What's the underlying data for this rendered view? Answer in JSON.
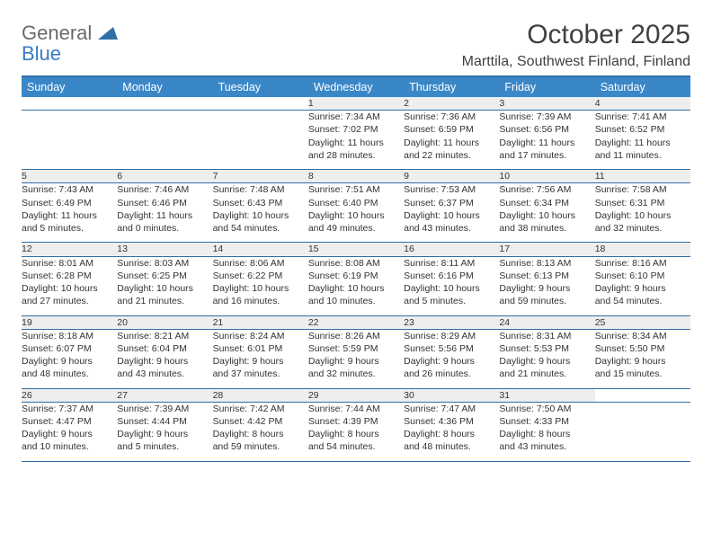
{
  "brand": {
    "name1": "General",
    "name2": "Blue"
  },
  "title": "October 2025",
  "location": "Marttila, Southwest Finland, Finland",
  "header_bg": "#3a87c8",
  "border_color": "#2f6fa8",
  "day_headers": [
    "Sunday",
    "Monday",
    "Tuesday",
    "Wednesday",
    "Thursday",
    "Friday",
    "Saturday"
  ],
  "weeks": [
    {
      "days": [
        {
          "num": "",
          "lines": []
        },
        {
          "num": "",
          "lines": []
        },
        {
          "num": "",
          "lines": []
        },
        {
          "num": "1",
          "lines": [
            "Sunrise: 7:34 AM",
            "Sunset: 7:02 PM",
            "Daylight: 11 hours",
            "and 28 minutes."
          ]
        },
        {
          "num": "2",
          "lines": [
            "Sunrise: 7:36 AM",
            "Sunset: 6:59 PM",
            "Daylight: 11 hours",
            "and 22 minutes."
          ]
        },
        {
          "num": "3",
          "lines": [
            "Sunrise: 7:39 AM",
            "Sunset: 6:56 PM",
            "Daylight: 11 hours",
            "and 17 minutes."
          ]
        },
        {
          "num": "4",
          "lines": [
            "Sunrise: 7:41 AM",
            "Sunset: 6:52 PM",
            "Daylight: 11 hours",
            "and 11 minutes."
          ]
        }
      ]
    },
    {
      "days": [
        {
          "num": "5",
          "lines": [
            "Sunrise: 7:43 AM",
            "Sunset: 6:49 PM",
            "Daylight: 11 hours",
            "and 5 minutes."
          ]
        },
        {
          "num": "6",
          "lines": [
            "Sunrise: 7:46 AM",
            "Sunset: 6:46 PM",
            "Daylight: 11 hours",
            "and 0 minutes."
          ]
        },
        {
          "num": "7",
          "lines": [
            "Sunrise: 7:48 AM",
            "Sunset: 6:43 PM",
            "Daylight: 10 hours",
            "and 54 minutes."
          ]
        },
        {
          "num": "8",
          "lines": [
            "Sunrise: 7:51 AM",
            "Sunset: 6:40 PM",
            "Daylight: 10 hours",
            "and 49 minutes."
          ]
        },
        {
          "num": "9",
          "lines": [
            "Sunrise: 7:53 AM",
            "Sunset: 6:37 PM",
            "Daylight: 10 hours",
            "and 43 minutes."
          ]
        },
        {
          "num": "10",
          "lines": [
            "Sunrise: 7:56 AM",
            "Sunset: 6:34 PM",
            "Daylight: 10 hours",
            "and 38 minutes."
          ]
        },
        {
          "num": "11",
          "lines": [
            "Sunrise: 7:58 AM",
            "Sunset: 6:31 PM",
            "Daylight: 10 hours",
            "and 32 minutes."
          ]
        }
      ]
    },
    {
      "days": [
        {
          "num": "12",
          "lines": [
            "Sunrise: 8:01 AM",
            "Sunset: 6:28 PM",
            "Daylight: 10 hours",
            "and 27 minutes."
          ]
        },
        {
          "num": "13",
          "lines": [
            "Sunrise: 8:03 AM",
            "Sunset: 6:25 PM",
            "Daylight: 10 hours",
            "and 21 minutes."
          ]
        },
        {
          "num": "14",
          "lines": [
            "Sunrise: 8:06 AM",
            "Sunset: 6:22 PM",
            "Daylight: 10 hours",
            "and 16 minutes."
          ]
        },
        {
          "num": "15",
          "lines": [
            "Sunrise: 8:08 AM",
            "Sunset: 6:19 PM",
            "Daylight: 10 hours",
            "and 10 minutes."
          ]
        },
        {
          "num": "16",
          "lines": [
            "Sunrise: 8:11 AM",
            "Sunset: 6:16 PM",
            "Daylight: 10 hours",
            "and 5 minutes."
          ]
        },
        {
          "num": "17",
          "lines": [
            "Sunrise: 8:13 AM",
            "Sunset: 6:13 PM",
            "Daylight: 9 hours",
            "and 59 minutes."
          ]
        },
        {
          "num": "18",
          "lines": [
            "Sunrise: 8:16 AM",
            "Sunset: 6:10 PM",
            "Daylight: 9 hours",
            "and 54 minutes."
          ]
        }
      ]
    },
    {
      "days": [
        {
          "num": "19",
          "lines": [
            "Sunrise: 8:18 AM",
            "Sunset: 6:07 PM",
            "Daylight: 9 hours",
            "and 48 minutes."
          ]
        },
        {
          "num": "20",
          "lines": [
            "Sunrise: 8:21 AM",
            "Sunset: 6:04 PM",
            "Daylight: 9 hours",
            "and 43 minutes."
          ]
        },
        {
          "num": "21",
          "lines": [
            "Sunrise: 8:24 AM",
            "Sunset: 6:01 PM",
            "Daylight: 9 hours",
            "and 37 minutes."
          ]
        },
        {
          "num": "22",
          "lines": [
            "Sunrise: 8:26 AM",
            "Sunset: 5:59 PM",
            "Daylight: 9 hours",
            "and 32 minutes."
          ]
        },
        {
          "num": "23",
          "lines": [
            "Sunrise: 8:29 AM",
            "Sunset: 5:56 PM",
            "Daylight: 9 hours",
            "and 26 minutes."
          ]
        },
        {
          "num": "24",
          "lines": [
            "Sunrise: 8:31 AM",
            "Sunset: 5:53 PM",
            "Daylight: 9 hours",
            "and 21 minutes."
          ]
        },
        {
          "num": "25",
          "lines": [
            "Sunrise: 8:34 AM",
            "Sunset: 5:50 PM",
            "Daylight: 9 hours",
            "and 15 minutes."
          ]
        }
      ]
    },
    {
      "days": [
        {
          "num": "26",
          "lines": [
            "Sunrise: 7:37 AM",
            "Sunset: 4:47 PM",
            "Daylight: 9 hours",
            "and 10 minutes."
          ]
        },
        {
          "num": "27",
          "lines": [
            "Sunrise: 7:39 AM",
            "Sunset: 4:44 PM",
            "Daylight: 9 hours",
            "and 5 minutes."
          ]
        },
        {
          "num": "28",
          "lines": [
            "Sunrise: 7:42 AM",
            "Sunset: 4:42 PM",
            "Daylight: 8 hours",
            "and 59 minutes."
          ]
        },
        {
          "num": "29",
          "lines": [
            "Sunrise: 7:44 AM",
            "Sunset: 4:39 PM",
            "Daylight: 8 hours",
            "and 54 minutes."
          ]
        },
        {
          "num": "30",
          "lines": [
            "Sunrise: 7:47 AM",
            "Sunset: 4:36 PM",
            "Daylight: 8 hours",
            "and 48 minutes."
          ]
        },
        {
          "num": "31",
          "lines": [
            "Sunrise: 7:50 AM",
            "Sunset: 4:33 PM",
            "Daylight: 8 hours",
            "and 43 minutes."
          ]
        },
        {
          "num": "",
          "lines": []
        }
      ]
    }
  ]
}
